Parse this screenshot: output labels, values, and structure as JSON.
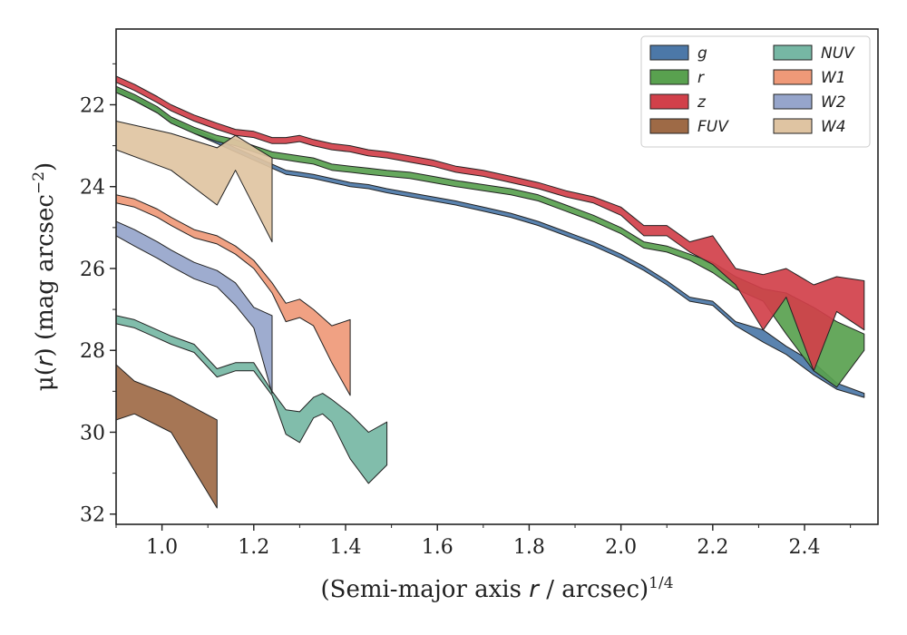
{
  "chart_data": {
    "type": "area",
    "title": "",
    "xlabel": "(Semi-major axis r / arcsec)^1/4",
    "ylabel": "μ(r) (mag arcsec^−2)",
    "xlim": [
      0.9,
      2.56
    ],
    "ylim": [
      32.25,
      20.15
    ],
    "y_inverted": true,
    "xticks": [
      "1.0",
      "1.2",
      "1.4",
      "1.6",
      "1.8",
      "2.0",
      "2.2",
      "2.4"
    ],
    "yticks": [
      "22",
      "24",
      "26",
      "28",
      "30",
      "32"
    ],
    "grid": false,
    "legend_position": "top-right",
    "series": [
      {
        "name": "g",
        "color": "#4c78a8",
        "x": [
          0.9,
          0.94,
          0.99,
          1.02,
          1.07,
          1.12,
          1.16,
          1.2,
          1.24,
          1.27,
          1.3,
          1.33,
          1.37,
          1.41,
          1.45,
          1.49,
          1.54,
          1.59,
          1.64,
          1.7,
          1.76,
          1.82,
          1.88,
          1.94,
          2.0,
          2.05,
          2.1,
          2.15,
          2.2,
          2.25,
          2.31,
          2.36,
          2.42,
          2.47,
          2.53
        ],
        "y_upper": [
          21.6,
          21.8,
          22.1,
          22.35,
          22.6,
          22.85,
          23.05,
          23.25,
          23.45,
          23.6,
          23.65,
          23.7,
          23.8,
          23.9,
          23.95,
          24.05,
          24.15,
          24.25,
          24.35,
          24.5,
          24.65,
          24.85,
          25.1,
          25.35,
          25.65,
          25.95,
          26.3,
          26.7,
          26.8,
          27.3,
          27.5,
          27.9,
          28.3,
          28.8,
          29.05
        ],
        "y_lower": [
          21.7,
          21.9,
          22.2,
          22.45,
          22.7,
          22.95,
          23.15,
          23.35,
          23.55,
          23.7,
          23.75,
          23.8,
          23.9,
          24.0,
          24.05,
          24.15,
          24.25,
          24.35,
          24.45,
          24.6,
          24.75,
          24.95,
          25.2,
          25.45,
          25.75,
          26.05,
          26.4,
          26.8,
          26.9,
          27.4,
          27.8,
          28.1,
          28.6,
          28.95,
          29.15
        ]
      },
      {
        "name": "r",
        "color": "#59a14f",
        "x": [
          0.9,
          0.94,
          0.99,
          1.02,
          1.07,
          1.12,
          1.16,
          1.2,
          1.24,
          1.27,
          1.3,
          1.33,
          1.37,
          1.41,
          1.45,
          1.49,
          1.54,
          1.59,
          1.64,
          1.7,
          1.76,
          1.82,
          1.88,
          1.94,
          2.0,
          2.05,
          2.1,
          2.15,
          2.2,
          2.25,
          2.31,
          2.36,
          2.42,
          2.47,
          2.53
        ],
        "y_upper": [
          21.55,
          21.75,
          22.05,
          22.3,
          22.55,
          22.75,
          22.85,
          23.0,
          23.15,
          23.2,
          23.25,
          23.3,
          23.45,
          23.5,
          23.55,
          23.6,
          23.65,
          23.75,
          23.85,
          23.95,
          24.05,
          24.2,
          24.45,
          24.7,
          25.0,
          25.35,
          25.45,
          25.65,
          25.85,
          26.2,
          26.5,
          26.6,
          26.95,
          27.3,
          27.6
        ],
        "y_lower": [
          21.7,
          21.9,
          22.2,
          22.45,
          22.7,
          22.9,
          23.0,
          23.15,
          23.3,
          23.35,
          23.4,
          23.45,
          23.6,
          23.65,
          23.7,
          23.75,
          23.8,
          23.9,
          24.0,
          24.1,
          24.2,
          24.35,
          24.6,
          24.85,
          25.15,
          25.5,
          25.6,
          25.8,
          26.1,
          26.5,
          26.8,
          27.6,
          28.5,
          28.9,
          28.0
        ]
      },
      {
        "name": "z",
        "color": "#d1404a",
        "x": [
          0.9,
          0.94,
          0.99,
          1.02,
          1.07,
          1.12,
          1.16,
          1.2,
          1.24,
          1.27,
          1.3,
          1.33,
          1.37,
          1.41,
          1.45,
          1.49,
          1.54,
          1.59,
          1.64,
          1.7,
          1.76,
          1.82,
          1.88,
          1.94,
          2.0,
          2.05,
          2.1,
          2.15,
          2.2,
          2.25,
          2.31,
          2.36,
          2.42,
          2.47,
          2.53
        ],
        "y_upper": [
          21.3,
          21.5,
          21.8,
          22.0,
          22.25,
          22.45,
          22.6,
          22.65,
          22.8,
          22.8,
          22.75,
          22.85,
          22.95,
          23.0,
          23.1,
          23.15,
          23.25,
          23.35,
          23.5,
          23.6,
          23.75,
          23.9,
          24.1,
          24.25,
          24.5,
          24.95,
          24.95,
          25.35,
          25.2,
          26.0,
          26.15,
          26.0,
          26.4,
          26.2,
          26.3
        ],
        "y_lower": [
          21.45,
          21.65,
          21.95,
          22.15,
          22.4,
          22.6,
          22.75,
          22.8,
          22.95,
          22.95,
          22.9,
          23.0,
          23.1,
          23.15,
          23.25,
          23.3,
          23.4,
          23.5,
          23.65,
          23.75,
          23.9,
          24.05,
          24.25,
          24.4,
          24.7,
          25.2,
          25.2,
          25.6,
          25.9,
          26.4,
          27.5,
          26.7,
          28.5,
          27.05,
          27.5
        ]
      },
      {
        "name": "FUV",
        "color": "#9e6a46",
        "x": [
          0.9,
          0.94,
          1.02,
          1.12
        ],
        "y_upper": [
          28.35,
          28.75,
          29.1,
          29.7
        ],
        "y_lower": [
          29.7,
          29.55,
          30.0,
          31.85
        ]
      },
      {
        "name": "NUV",
        "color": "#76b7a4",
        "x": [
          0.9,
          0.94,
          0.99,
          1.02,
          1.07,
          1.12,
          1.16,
          1.2,
          1.24,
          1.27,
          1.3,
          1.33,
          1.35,
          1.37,
          1.41,
          1.45,
          1.49
        ],
        "y_upper": [
          27.15,
          27.25,
          27.5,
          27.65,
          27.85,
          28.45,
          28.3,
          28.3,
          29.0,
          29.45,
          29.5,
          29.15,
          29.05,
          29.2,
          29.55,
          30.0,
          29.75
        ],
        "y_lower": [
          27.35,
          27.45,
          27.7,
          27.85,
          28.05,
          28.65,
          28.5,
          28.5,
          29.1,
          30.05,
          30.25,
          29.65,
          29.55,
          29.75,
          30.65,
          31.25,
          30.8
        ]
      },
      {
        "name": "W1",
        "color": "#ef9978",
        "x": [
          0.9,
          0.94,
          0.99,
          1.02,
          1.07,
          1.12,
          1.16,
          1.2,
          1.24,
          1.27,
          1.3,
          1.33,
          1.37,
          1.41
        ],
        "y_upper": [
          24.2,
          24.3,
          24.55,
          24.75,
          25.05,
          25.2,
          25.45,
          25.8,
          26.35,
          26.85,
          26.75,
          27.0,
          27.4,
          27.25
        ],
        "y_lower": [
          24.4,
          24.5,
          24.75,
          24.95,
          25.25,
          25.4,
          25.65,
          26.0,
          26.6,
          27.3,
          27.2,
          27.4,
          28.3,
          29.1
        ]
      },
      {
        "name": "W2",
        "color": "#96a5cb",
        "x": [
          0.9,
          0.94,
          0.99,
          1.02,
          1.07,
          1.12,
          1.16,
          1.2,
          1.24
        ],
        "y_upper": [
          24.85,
          25.05,
          25.35,
          25.55,
          25.85,
          26.05,
          26.35,
          26.95,
          27.15
        ],
        "y_lower": [
          25.2,
          25.45,
          25.75,
          25.95,
          26.25,
          26.45,
          26.9,
          27.45,
          29.05
        ]
      },
      {
        "name": "W4",
        "color": "#dfc4a2",
        "x": [
          0.9,
          1.02,
          1.12,
          1.16,
          1.24
        ],
        "y_upper": [
          22.4,
          22.7,
          23.05,
          22.75,
          23.3
        ],
        "y_lower": [
          23.1,
          23.6,
          24.45,
          23.6,
          25.35
        ]
      }
    ]
  }
}
